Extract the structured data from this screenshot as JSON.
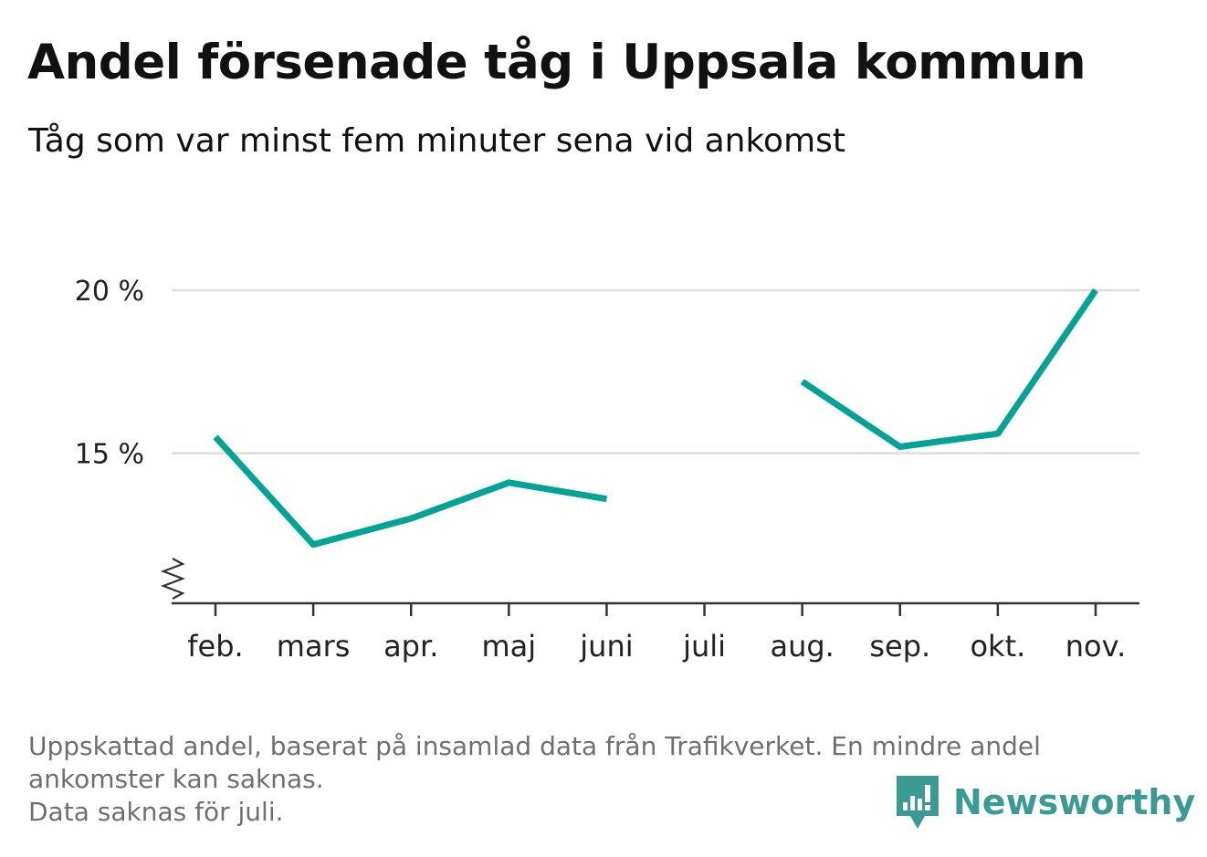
{
  "header": {
    "title": "Andel försenade tåg i Uppsala kommun",
    "subtitle": "Tåg som var minst fem minuter sena vid ankomst"
  },
  "chart_data": {
    "type": "line",
    "title": "Andel försenade tåg i Uppsala kommun",
    "subtitle": "Tåg som var minst fem minuter sena vid ankomst",
    "xlabel": "",
    "ylabel": "",
    "categories": [
      "feb.",
      "mars",
      "apr.",
      "maj",
      "juni",
      "juli",
      "aug.",
      "sep.",
      "okt.",
      "nov."
    ],
    "series": [
      {
        "values": [
          15.5,
          12.2,
          13.0,
          14.1,
          13.6,
          null,
          17.2,
          15.2,
          15.6,
          20.0
        ],
        "color": "#00a396"
      }
    ],
    "yticks": [
      15,
      20
    ],
    "ytick_labels": [
      "15 %",
      "20 %"
    ],
    "ylim": [
      10.4,
      20.0
    ],
    "y_axis_break": true,
    "grid": true,
    "legend": "none"
  },
  "footnote": {
    "line1": "Uppskattad andel, baserat på insamlad data från Trafikverket. En mindre andel",
    "line2": "ankomster kan saknas.",
    "line3": "Data saknas för juli."
  },
  "logo": {
    "text": "Newsworthy",
    "color": "#3b9a93",
    "icon": "bar-chart-speech-bubble-icon"
  },
  "colors": {
    "line": "#00a396",
    "grid": "#dddddd",
    "axis": "#333333",
    "footnote": "#6f6f6f"
  }
}
